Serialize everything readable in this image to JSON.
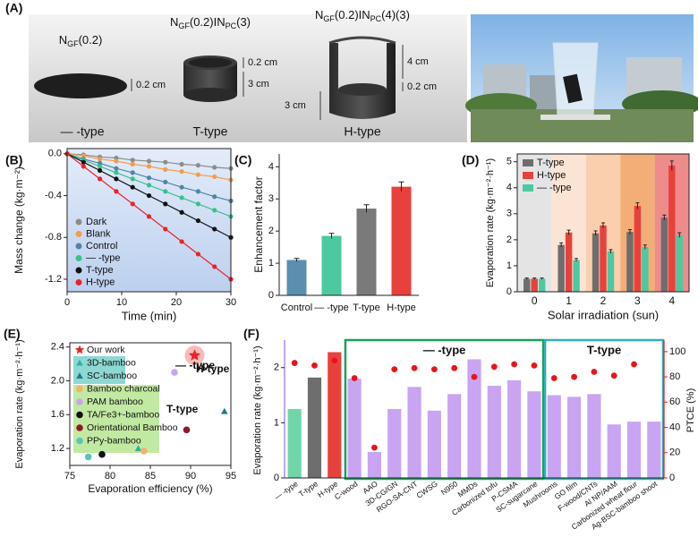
{
  "panel_a": {
    "label": "(A)",
    "samples": [
      {
        "name_parts": [
          "N",
          "GF",
          "(0.2)"
        ],
        "dims": [
          "0.2 cm"
        ],
        "type_label": "— -type"
      },
      {
        "name_parts": [
          "N",
          "GF",
          "(0.2)IN",
          "PC",
          "(3)"
        ],
        "dims": [
          "0.2 cm",
          "3 cm"
        ],
        "type_label": "T-type"
      },
      {
        "name_parts": [
          "N",
          "GF",
          "(0.2)IN",
          "PC",
          "(4)(3)"
        ],
        "dims": [
          "4 cm",
          "0.2 cm",
          "3 cm"
        ],
        "type_label": "H-type"
      }
    ]
  },
  "chart_data": [
    {
      "type": "line",
      "label": "(B)",
      "xlabel": "Time (min)",
      "ylabel": "Mass change (kg·m⁻²)",
      "x": [
        0,
        3,
        6,
        9,
        12,
        15,
        18,
        21,
        24,
        27,
        30
      ],
      "xlim": [
        0,
        30
      ],
      "xticks": [
        0,
        10,
        20,
        30
      ],
      "ylim": [
        -1.32,
        0.05
      ],
      "yticks": [
        {
          "value": 0,
          "label": "0.0"
        },
        -0.4,
        -0.8,
        -1.2
      ],
      "series": [
        {
          "name": "Dark",
          "color": "#8c8c8c",
          "values": [
            0,
            -0.01,
            -0.03,
            -0.04,
            -0.06,
            -0.07,
            -0.08,
            -0.1,
            -0.11,
            -0.13,
            -0.14
          ]
        },
        {
          "name": "Blank",
          "color": "#f39c4a",
          "values": [
            0,
            -0.02,
            -0.05,
            -0.07,
            -0.1,
            -0.12,
            -0.15,
            -0.17,
            -0.2,
            -0.22,
            -0.25
          ]
        },
        {
          "name": "Control",
          "color": "#4f86a6",
          "values": [
            0,
            -0.05,
            -0.09,
            -0.14,
            -0.18,
            -0.23,
            -0.27,
            -0.32,
            -0.36,
            -0.41,
            -0.45
          ]
        },
        {
          "name": "— -type",
          "color": "#3cc08a",
          "values": [
            0,
            -0.06,
            -0.12,
            -0.18,
            -0.24,
            -0.3,
            -0.36,
            -0.42,
            -0.48,
            -0.54,
            -0.6
          ]
        },
        {
          "name": "T-type",
          "color": "#111111",
          "values": [
            0,
            -0.08,
            -0.16,
            -0.24,
            -0.32,
            -0.4,
            -0.48,
            -0.56,
            -0.64,
            -0.72,
            -0.8
          ]
        },
        {
          "name": "H-type",
          "color": "#e8242a",
          "values": [
            0,
            -0.12,
            -0.24,
            -0.36,
            -0.48,
            -0.6,
            -0.72,
            -0.84,
            -0.96,
            -1.08,
            -1.2
          ]
        }
      ]
    },
    {
      "type": "bar",
      "label": "(C)",
      "ylabel": "Enhancement factor",
      "categories": [
        "Control",
        "— -type",
        "T-type",
        "H-type"
      ],
      "values": [
        1.1,
        1.85,
        2.7,
        3.38
      ],
      "errors": [
        0.05,
        0.08,
        0.12,
        0.15
      ],
      "colors": [
        "#5b8fb0",
        "#4cc9a0",
        "#7a7a7a",
        "#e8413c"
      ],
      "ylim": [
        0,
        4.4
      ],
      "yticks": [
        0,
        1,
        2,
        3,
        4
      ]
    },
    {
      "type": "grouped_bar",
      "label": "(D)",
      "xlabel": "Solar irradiation (sun)",
      "ylabel": "Evaporation rate (kg·m⁻²·h⁻¹)",
      "categories": [
        "0",
        "1",
        "2",
        "3",
        "4"
      ],
      "series": [
        {
          "name": "T-type",
          "color": "#6e6e6e",
          "values": [
            0.5,
            1.8,
            2.25,
            2.3,
            2.85
          ],
          "errors": [
            0.03,
            0.08,
            0.09,
            0.09,
            0.1
          ]
        },
        {
          "name": "H-type",
          "color": "#e8413c",
          "values": [
            0.5,
            2.28,
            2.55,
            3.3,
            4.85
          ],
          "errors": [
            0.03,
            0.09,
            0.1,
            0.12,
            0.18
          ]
        },
        {
          "name": "— -type",
          "color": "#4cc9a0",
          "values": [
            0.5,
            1.22,
            1.55,
            1.72,
            2.18
          ],
          "errors": [
            0.03,
            0.06,
            0.07,
            0.08,
            0.09
          ]
        }
      ],
      "ylim": [
        0,
        5.3
      ],
      "yticks": [
        0,
        1,
        2,
        3,
        4,
        5
      ]
    },
    {
      "type": "scatter",
      "label": "(E)",
      "xlabel": "Evaporation efficiency (%)",
      "ylabel": "Evaporation rate (kg·m⁻²·h⁻¹)",
      "xlim": [
        75,
        95
      ],
      "xticks": [
        75,
        80,
        85,
        90,
        95
      ],
      "ylim": [
        1.0,
        2.45
      ],
      "yticks": [
        1.2,
        1.6,
        {
          "value": 2,
          "label": "2.0"
        },
        2.4
      ],
      "series": [
        {
          "name": "Our work",
          "color": "#e8242a",
          "marker": "star",
          "x": [
            90.5
          ],
          "values": [
            2.3
          ]
        },
        {
          "name": "3D-bamboo",
          "color": "#2bb3a0",
          "marker": "triangle",
          "x": [
            83.5
          ],
          "values": [
            1.2
          ]
        },
        {
          "name": "SC-bamboo",
          "color": "#1f7a8c",
          "marker": "triangle",
          "x": [
            94.2
          ],
          "values": [
            1.64
          ]
        },
        {
          "name": "Bamboo charcoal",
          "color": "#f2b36a",
          "marker": "circle",
          "x": [
            84.2
          ],
          "values": [
            1.17
          ]
        },
        {
          "name": "PAM bamboo",
          "color": "#c7a6f0",
          "marker": "circle",
          "x": [
            88
          ],
          "values": [
            2.1
          ]
        },
        {
          "name": "TA/Fe3+-bamboo",
          "color": "#111111",
          "marker": "circle",
          "x": [
            79
          ],
          "values": [
            1.13
          ]
        },
        {
          "name": "Orientational Bamboo",
          "color": "#8b1a2a",
          "marker": "circle",
          "x": [
            89.5
          ],
          "values": [
            1.42
          ]
        },
        {
          "name": "PPy-bamboo",
          "color": "#5cc3b8",
          "marker": "circle",
          "x": [
            77.3
          ],
          "values": [
            1.1
          ]
        }
      ],
      "annotations": [
        "— -type",
        "H-type",
        "T-type"
      ]
    },
    {
      "type": "bar_dual",
      "label": "(F)",
      "ylabel": "Evaporation rate (kg·m⁻²·h⁻¹)",
      "y2label": "PTCE (%)",
      "categories": [
        "— -type",
        "T-type",
        "H-type",
        "C-wood",
        "AAO",
        "3D-CG/GN",
        "RGO-SA-CNT",
        "CWSG",
        "N950",
        "MMDs",
        "Carbonized tofu",
        "P-CSMA",
        "SC-sugarcane",
        "Mushrooms",
        "GO film",
        "F-wood/CNTs",
        "Al NP/AAM",
        "Carbonized wheat flour",
        "Ag-BSC-bamboo shoot"
      ],
      "values": [
        1.25,
        1.82,
        2.28,
        1.8,
        0.47,
        1.25,
        1.65,
        1.22,
        1.52,
        2.15,
        1.67,
        1.77,
        1.57,
        1.5,
        1.47,
        1.52,
        0.97,
        1.02,
        1.02
      ],
      "colors": [
        "#6fd6a8",
        "#6e6e6e",
        "#e8413c",
        "#c9a4f2",
        "#c9a4f2",
        "#c9a4f2",
        "#c9a4f2",
        "#c9a4f2",
        "#c9a4f2",
        "#c9a4f2",
        "#c9a4f2",
        "#c9a4f2",
        "#c9a4f2",
        "#c9a4f2",
        "#c9a4f2",
        "#c9a4f2",
        "#c9a4f2",
        "#c9a4f2",
        "#c9a4f2"
      ],
      "y2_values": [
        91,
        89,
        93,
        79,
        24,
        86,
        87,
        86,
        87,
        80,
        88,
        90,
        89,
        79,
        80,
        84,
        81,
        90,
        null
      ],
      "y2_color": "#e8141c",
      "ylim": [
        0,
        2.45
      ],
      "yticks": [
        0,
        1,
        2
      ],
      "y2lim": [
        0,
        107
      ],
      "y2ticks": [
        0,
        20,
        40,
        60,
        80,
        100
      ],
      "group_labels": [
        "— -type",
        "T-type"
      ]
    }
  ]
}
